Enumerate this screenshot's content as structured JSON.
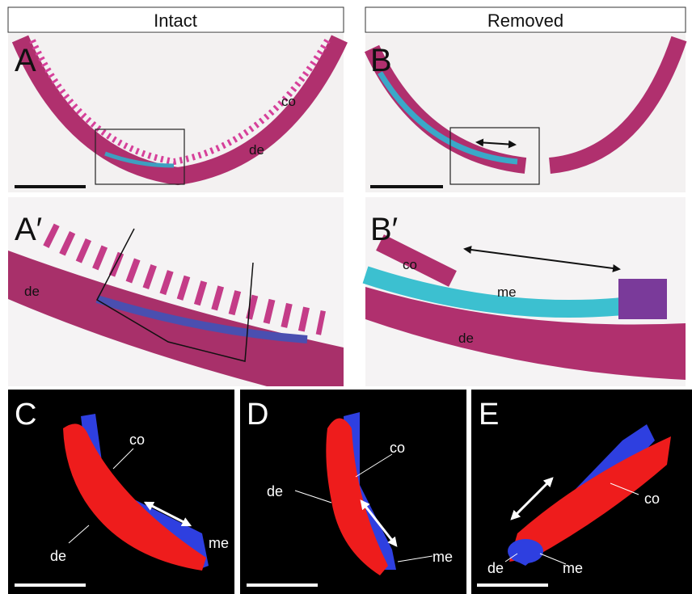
{
  "headers": [
    "Intact",
    "Removed"
  ],
  "panels": [
    {
      "label": "A",
      "annotations": [
        "co",
        "de"
      ]
    },
    {
      "label": "B",
      "annotations": []
    },
    {
      "label": "A′",
      "annotations": [
        "de"
      ]
    },
    {
      "label": "B′",
      "annotations": [
        "co",
        "me",
        "de"
      ]
    },
    {
      "label": "C",
      "annotations": [
        "co",
        "de",
        "me"
      ]
    },
    {
      "label": "D",
      "annotations": [
        "co",
        "de",
        "me"
      ]
    },
    {
      "label": "E",
      "annotations": [
        "co",
        "de",
        "me"
      ]
    }
  ]
}
